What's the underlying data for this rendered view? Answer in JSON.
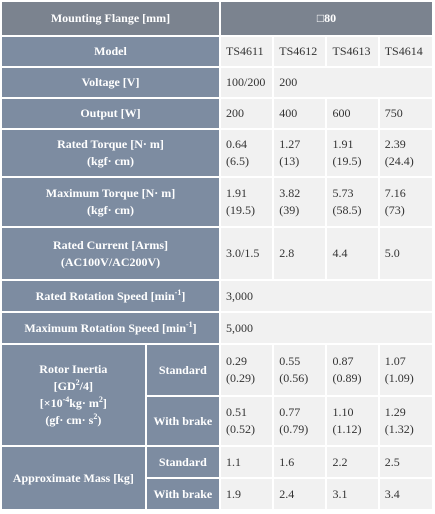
{
  "table": {
    "rows": [
      {
        "label": [
          "Mounting Flange [mm]"
        ],
        "cells": [
          [
            "□80"
          ]
        ],
        "dark": true
      },
      {
        "label": [
          "Model"
        ],
        "cells": [
          [
            "TS4611"
          ],
          [
            "TS4612"
          ],
          [
            "TS4613"
          ],
          [
            "TS4614"
          ]
        ]
      },
      {
        "label": [
          "Voltage [V]"
        ],
        "cells": [
          [
            "100/200"
          ],
          [
            "200"
          ]
        ]
      },
      {
        "label": [
          "Output [W]"
        ],
        "cells": [
          [
            "200"
          ],
          [
            "400"
          ],
          [
            "600"
          ],
          [
            "750"
          ]
        ]
      },
      {
        "label": [
          "Rated Torque [N· m]",
          "(kgf· cm)"
        ],
        "cells": [
          [
            "0.64",
            "(6.5)"
          ],
          [
            "1.27",
            "(13)"
          ],
          [
            "1.91",
            "(19.5)"
          ],
          [
            "2.39",
            "(24.4)"
          ]
        ]
      },
      {
        "label": [
          "Maximum Torque [N· m]",
          "(kgf· cm)"
        ],
        "cells": [
          [
            "1.91",
            "(19.5)"
          ],
          [
            "3.82",
            "(39)"
          ],
          [
            "5.73",
            "(58.5)"
          ],
          [
            "7.16",
            "(73)"
          ]
        ]
      },
      {
        "label": [
          "Rated Current [Arms]",
          "(AC100V/AC200V)"
        ],
        "cells": [
          [
            "3.0/1.5"
          ],
          [
            "2.8"
          ],
          [
            "4.4"
          ],
          [
            "5.0"
          ]
        ]
      },
      {
        "label": [
          [
            "Rated Rotation Speed [min",
            {
              "sup": "-1"
            },
            "]"
          ]
        ],
        "cells": [
          [
            "3,000"
          ]
        ]
      },
      {
        "label": [
          [
            "Maximum Rotation Speed [min",
            {
              "sup": "-1"
            },
            "]"
          ]
        ],
        "cells": [
          [
            "5,000"
          ]
        ]
      },
      {
        "label": [
          "Rotor Inertia",
          [
            "[GD",
            {
              "sup": "2"
            },
            "/4]"
          ],
          [
            "[×10",
            {
              "sup": "-4"
            },
            "kg· m",
            {
              "sup": "2"
            },
            "]"
          ],
          [
            "(gf· cm· s",
            {
              "sup": "2"
            },
            ")"
          ]
        ],
        "subrows": [
          {
            "name": "Standard",
            "cells": [
              [
                "0.29",
                "(0.29)"
              ],
              [
                "0.55",
                "(0.56)"
              ],
              [
                "0.87",
                "(0.89)"
              ],
              [
                "1.07",
                "(1.09)"
              ]
            ]
          },
          {
            "name": "With brake",
            "cells": [
              [
                "0.51",
                "(0.52)"
              ],
              [
                "0.77",
                "(0.79)"
              ],
              [
                "1.10",
                "(1.12)"
              ],
              [
                "1.29",
                "(1.32)"
              ]
            ]
          }
        ]
      },
      {
        "label": [
          "Approximate Mass [kg]"
        ],
        "subrows": [
          {
            "name": "Standard",
            "cells": [
              [
                "1.1"
              ],
              [
                "1.6"
              ],
              [
                "2.2"
              ],
              [
                "2.5"
              ]
            ]
          },
          {
            "name": "With brake",
            "cells": [
              [
                "1.9"
              ],
              [
                "2.4"
              ],
              [
                "3.1"
              ],
              [
                "3.4"
              ]
            ]
          }
        ]
      }
    ]
  }
}
